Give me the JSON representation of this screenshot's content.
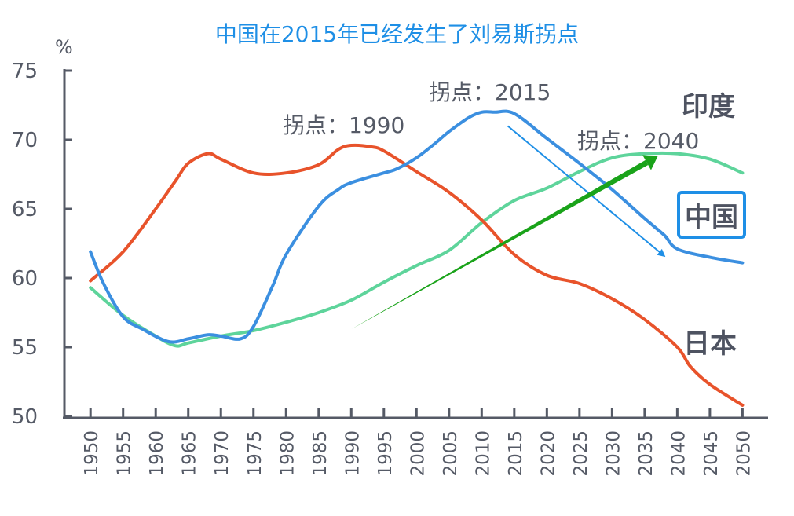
{
  "chart_data": {
    "type": "line",
    "title": "中国在2015年已经发生了刘易斯拐点",
    "ylabel": "%",
    "xlabel": "",
    "ylim": [
      50,
      75
    ],
    "yticks": [
      50,
      55,
      60,
      65,
      70,
      75
    ],
    "xlim": [
      1946,
      2052
    ],
    "xticks": [
      1950,
      1955,
      1960,
      1965,
      1970,
      1975,
      1980,
      1985,
      1990,
      1995,
      2000,
      2005,
      2010,
      2015,
      2020,
      2025,
      2030,
      2035,
      2040,
      2045,
      2050
    ],
    "series": [
      {
        "name": "中国",
        "color": "#3b8fe0",
        "x": [
          1950,
          1952,
          1955,
          1958,
          1962,
          1965,
          1968,
          1970,
          1973,
          1975,
          1978,
          1980,
          1985,
          1988,
          1990,
          1995,
          1997,
          2000,
          2003,
          2005,
          2008,
          2010,
          2012,
          2015,
          2020,
          2025,
          2030,
          2035,
          2038,
          2040,
          2045,
          2050
        ],
        "y": [
          61.9,
          59.6,
          57.2,
          56.3,
          55.4,
          55.6,
          55.9,
          55.8,
          55.6,
          56.5,
          59.5,
          61.7,
          65.2,
          66.4,
          66.9,
          67.6,
          67.9,
          68.7,
          69.8,
          70.6,
          71.6,
          72.0,
          72.0,
          71.9,
          70.1,
          68.3,
          66.4,
          64.3,
          63.1,
          62.1,
          61.5,
          61.1
        ]
      },
      {
        "name": "日本",
        "color": "#e8532b",
        "x": [
          1950,
          1955,
          1960,
          1963,
          1965,
          1968,
          1970,
          1975,
          1980,
          1985,
          1988,
          1990,
          1993,
          1995,
          2000,
          2005,
          2010,
          2015,
          2020,
          2025,
          2030,
          2035,
          2040,
          2042,
          2045,
          2050
        ],
        "y": [
          59.8,
          61.9,
          65.0,
          67.0,
          68.3,
          69.0,
          68.6,
          67.6,
          67.6,
          68.2,
          69.3,
          69.6,
          69.5,
          69.2,
          67.7,
          66.2,
          64.2,
          61.7,
          60.2,
          59.6,
          58.5,
          57.0,
          55.0,
          53.6,
          52.3,
          50.8
        ]
      },
      {
        "name": "印度",
        "color": "#5ed49b",
        "x": [
          1950,
          1955,
          1960,
          1963,
          1965,
          1970,
          1975,
          1980,
          1985,
          1990,
          1995,
          2000,
          2005,
          2010,
          2015,
          2020,
          2025,
          2030,
          2035,
          2040,
          2045,
          2050
        ],
        "y": [
          59.3,
          57.3,
          55.8,
          55.1,
          55.3,
          55.8,
          56.2,
          56.8,
          57.5,
          58.4,
          59.7,
          60.9,
          62.0,
          64.0,
          65.6,
          66.5,
          67.7,
          68.7,
          69.0,
          69.0,
          68.6,
          67.6
        ]
      }
    ],
    "annotations": [
      {
        "text": "拐点：1990"
      },
      {
        "text": "拐点：2015"
      },
      {
        "text": "拐点：2040"
      }
    ],
    "series_labels": {
      "india": "印度",
      "china": "中国",
      "japan": "日本"
    },
    "arrows": [
      {
        "color": "#1e8fe6",
        "from": [
          2014,
          71.0
        ],
        "to": [
          2038,
          61.6
        ]
      },
      {
        "color": "#1aa31a",
        "from": [
          1990,
          56.3
        ],
        "to": [
          2037,
          68.8
        ]
      }
    ],
    "grid": false
  }
}
